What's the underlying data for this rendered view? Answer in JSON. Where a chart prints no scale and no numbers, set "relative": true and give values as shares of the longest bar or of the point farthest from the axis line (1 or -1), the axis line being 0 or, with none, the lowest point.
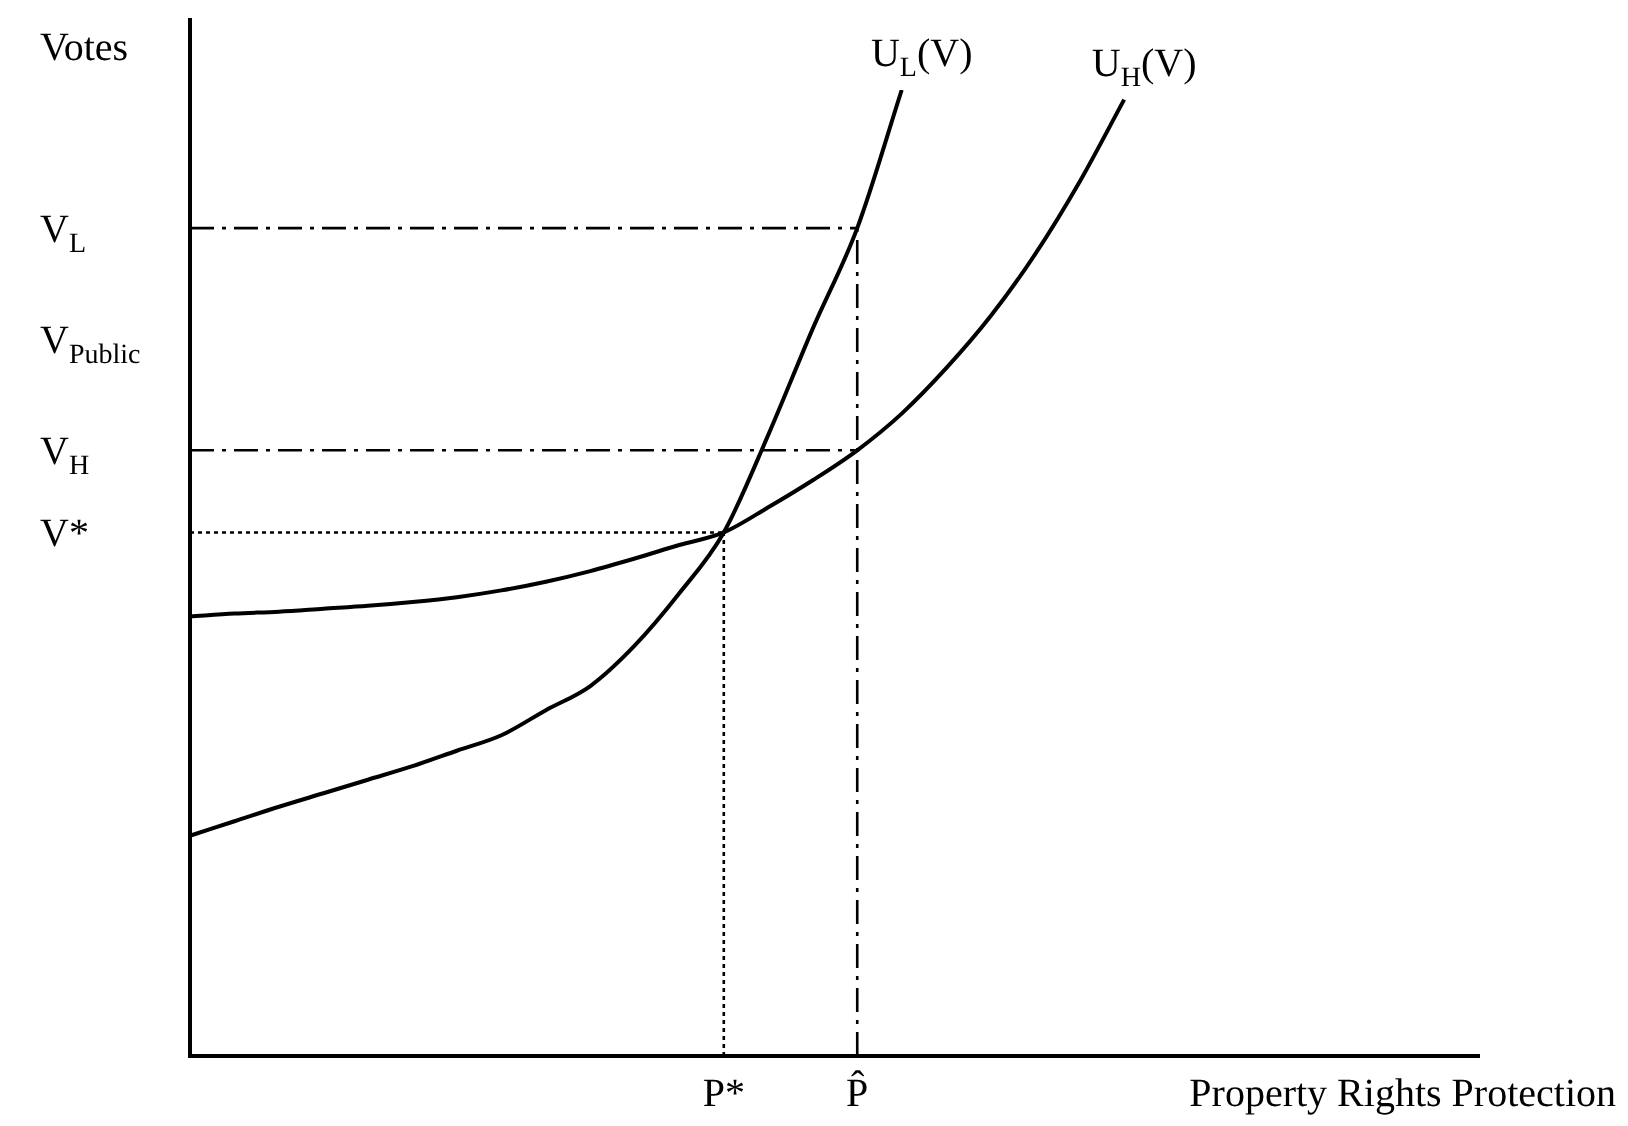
{
  "chart_data": {
    "type": "line",
    "relative": true,
    "xlabel": "Property Rights Protection",
    "ylabel": "Votes",
    "grid": false,
    "legend": false,
    "marker": "none",
    "line_style": "solid",
    "categories": [
      null,
      null,
      null,
      null,
      null,
      null,
      null,
      null,
      null,
      null,
      null,
      null,
      "P*",
      null,
      null,
      "P̂",
      null,
      null,
      null,
      null,
      null,
      null,
      null,
      null,
      null,
      null,
      null,
      null,
      null,
      null
    ],
    "series": [
      {
        "name": "U$_{L}$(V)",
        "color": "#000000",
        "values": [
          0.228,
          0.243,
          0.258,
          0.272,
          0.286,
          0.3,
          0.316,
          0.332,
          0.358,
          0.383,
          0.425,
          0.479,
          0.542,
          0.643,
          0.753,
          0.857,
          1,
          null,
          null,
          null,
          null,
          null,
          null,
          null,
          null,
          null,
          null,
          null,
          null,
          null
        ]
      },
      {
        "name": "U$_{H}$(V)",
        "color": "#000000",
        "values": [
          0.455,
          0.458,
          0.46,
          0.463,
          0.466,
          0.47,
          0.475,
          0.482,
          0.491,
          0.502,
          0.515,
          0.529,
          0.542,
          0.568,
          0.596,
          0.627,
          0.665,
          0.712,
          0.766,
          0.83,
          0.905,
          0.99,
          null,
          null,
          null,
          null,
          null,
          null,
          null,
          null
        ]
      }
    ],
    "ref_lines": [
      {
        "axis": "y",
        "value": 0.857,
        "label": "V$_{L}$",
        "line_style": "dashed",
        "color": "#000000"
      },
      {
        "axis": "y",
        "value": 0.627,
        "label": "V$_{H}$",
        "line_style": "dashed",
        "color": "#000000"
      },
      {
        "axis": "y",
        "value": 0.542,
        "label": "V*",
        "line_style": "dotted",
        "color": "#000000"
      },
      {
        "axis": "x",
        "value": "P*",
        "line_style": "dotted",
        "color": "#000000"
      },
      {
        "axis": "x",
        "value": "P̂",
        "line_style": "dashed",
        "color": "#000000"
      }
    ],
    "annotations": [
      "V$_{Public}$"
    ]
  }
}
